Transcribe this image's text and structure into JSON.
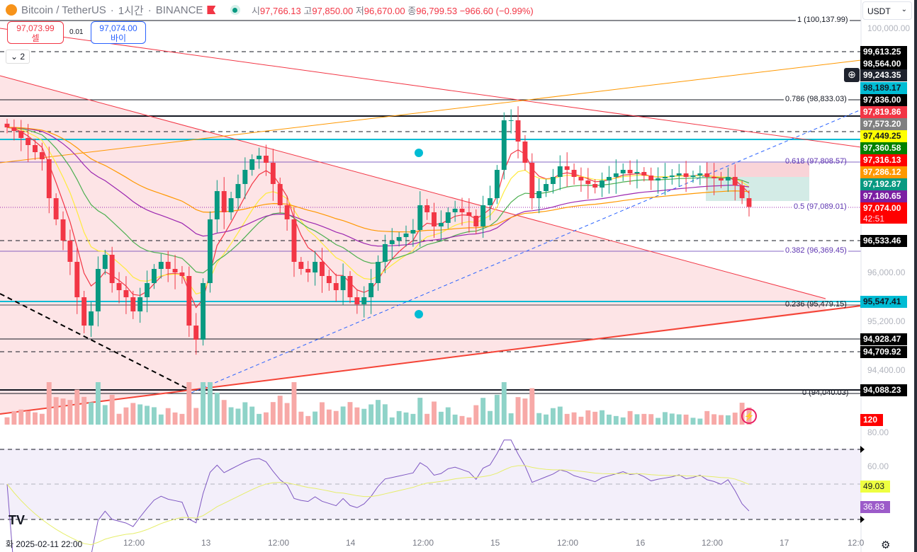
{
  "header": {
    "symbol": "Bitcoin / TetherUS",
    "interval": "1시간",
    "exchange": "BINANCE",
    "open_label": "시",
    "open": "97,766.13",
    "high_label": "고",
    "high": "97,850.00",
    "low_label": "저",
    "low": "96,670.00",
    "close_label": "종",
    "close": "96,799.53",
    "change": "−966.60 (−0.99%)"
  },
  "trade": {
    "sell_price": "97,073.99",
    "sell_label": "셀",
    "spread": "0.01",
    "buy_price": "97,074.00",
    "buy_label": "바이"
  },
  "collapse_label": "2",
  "currency": "USDT",
  "price_axis": [
    "100,000.00",
    "96,000.00",
    "95,200.00",
    "94,400.00",
    "80.00",
    "60.00"
  ],
  "price_tags": [
    {
      "v": "99,613.25",
      "bg": "#000000",
      "fg": "#ffffff"
    },
    {
      "v": "98,564.00",
      "bg": "#000000",
      "fg": "#ffffff"
    },
    {
      "v": "99,243.35",
      "bg": "#1e222d",
      "fg": "#ffffff"
    },
    {
      "v": "98,189.17",
      "bg": "#00bcd4",
      "fg": "#131722"
    },
    {
      "v": "97,836.00",
      "bg": "#000000",
      "fg": "#ffffff"
    },
    {
      "v": "97,819.86",
      "bg": "#f23645",
      "fg": "#ffffff"
    },
    {
      "v": "97,573.20",
      "bg": "#808080",
      "fg": "#ffffff"
    },
    {
      "v": "97,449.25",
      "bg": "#ffff00",
      "fg": "#131722"
    },
    {
      "v": "97,360.58",
      "bg": "#008000",
      "fg": "#ffffff"
    },
    {
      "v": "97,316.13",
      "bg": "#ff0000",
      "fg": "#ffffff"
    },
    {
      "v": "97,286.12",
      "bg": "#ff9800",
      "fg": "#ffffff"
    },
    {
      "v": "97,192.87",
      "bg": "#089981",
      "fg": "#ffffff"
    },
    {
      "v": "97,180.65",
      "bg": "#7b1fa2",
      "fg": "#ffffff"
    },
    {
      "v": "97,074.00",
      "bg": "#ff0000",
      "fg": "#ffffff"
    },
    {
      "v": "96,533.46",
      "bg": "#000000",
      "fg": "#ffffff"
    },
    {
      "v": "95,547.41",
      "bg": "#00bcd4",
      "fg": "#131722"
    },
    {
      "v": "94,928.47",
      "bg": "#000000",
      "fg": "#ffffff"
    },
    {
      "v": "94,709.92",
      "bg": "#000000",
      "fg": "#ffffff"
    },
    {
      "v": "94,088.23",
      "bg": "#000000",
      "fg": "#ffffff"
    }
  ],
  "countdown": "42:51",
  "volume_tag": "120",
  "rsi_tags": {
    "ma": "49.03",
    "rsi": "36.83"
  },
  "fib_levels": [
    {
      "label": "1 (100,137.99)"
    },
    {
      "label": "0.786 (98,833.03)"
    },
    {
      "label": "0.618 (97,808.57)"
    },
    {
      "label": "0.5 (97,089.01)"
    },
    {
      "label": "0.382 (96,369.45)"
    },
    {
      "label": "0.236 (95,479.15)"
    },
    {
      "label": "0 (94,040.03)"
    }
  ],
  "time_axis": [
    "화 2025-02-11  22:00",
    "12:00",
    "13",
    "12:00",
    "14",
    "12:00",
    "15",
    "12:00",
    "16",
    "12:00",
    "17",
    "12:0"
  ],
  "colors": {
    "up": "#089981",
    "down": "#f23645"
  },
  "chart_data": {
    "type": "candlestick",
    "interval": "1h",
    "closes": [
      98377,
      98319,
      98203,
      98087,
      97971,
      97855,
      97217,
      96870,
      96522,
      96174,
      95594,
      95130,
      95362,
      96058,
      96290,
      95826,
      95710,
      95594,
      95362,
      95594,
      95826,
      96058,
      96174,
      96058,
      96000,
      95942,
      95130,
      94899,
      95826,
      96870,
      97333,
      96986,
      97217,
      97449,
      97681,
      97855,
      97913,
      97797,
      97449,
      97101,
      96870,
      96174,
      96058,
      96000,
      96174,
      95942,
      95826,
      95710,
      95942,
      95594,
      95478,
      95594,
      95826,
      96174,
      96464,
      96522,
      96580,
      96638,
      96696,
      97101,
      96986,
      96754,
      96812,
      96986,
      97044,
      96986,
      96928,
      96754,
      97101,
      97217,
      97681,
      98493,
      98493,
      98145,
      97797,
      97217,
      97333,
      97449,
      97565,
      97739,
      97681,
      97565,
      97507,
      97449,
      97391,
      97507,
      97565,
      97623,
      97681,
      97623,
      97646,
      97588,
      97507,
      97542,
      97565,
      97588,
      97623,
      97565,
      97588,
      97623,
      97565,
      97542,
      97507,
      97565,
      97426,
      97217,
      97074
    ],
    "ylim": [
      93800,
      100300
    ]
  }
}
